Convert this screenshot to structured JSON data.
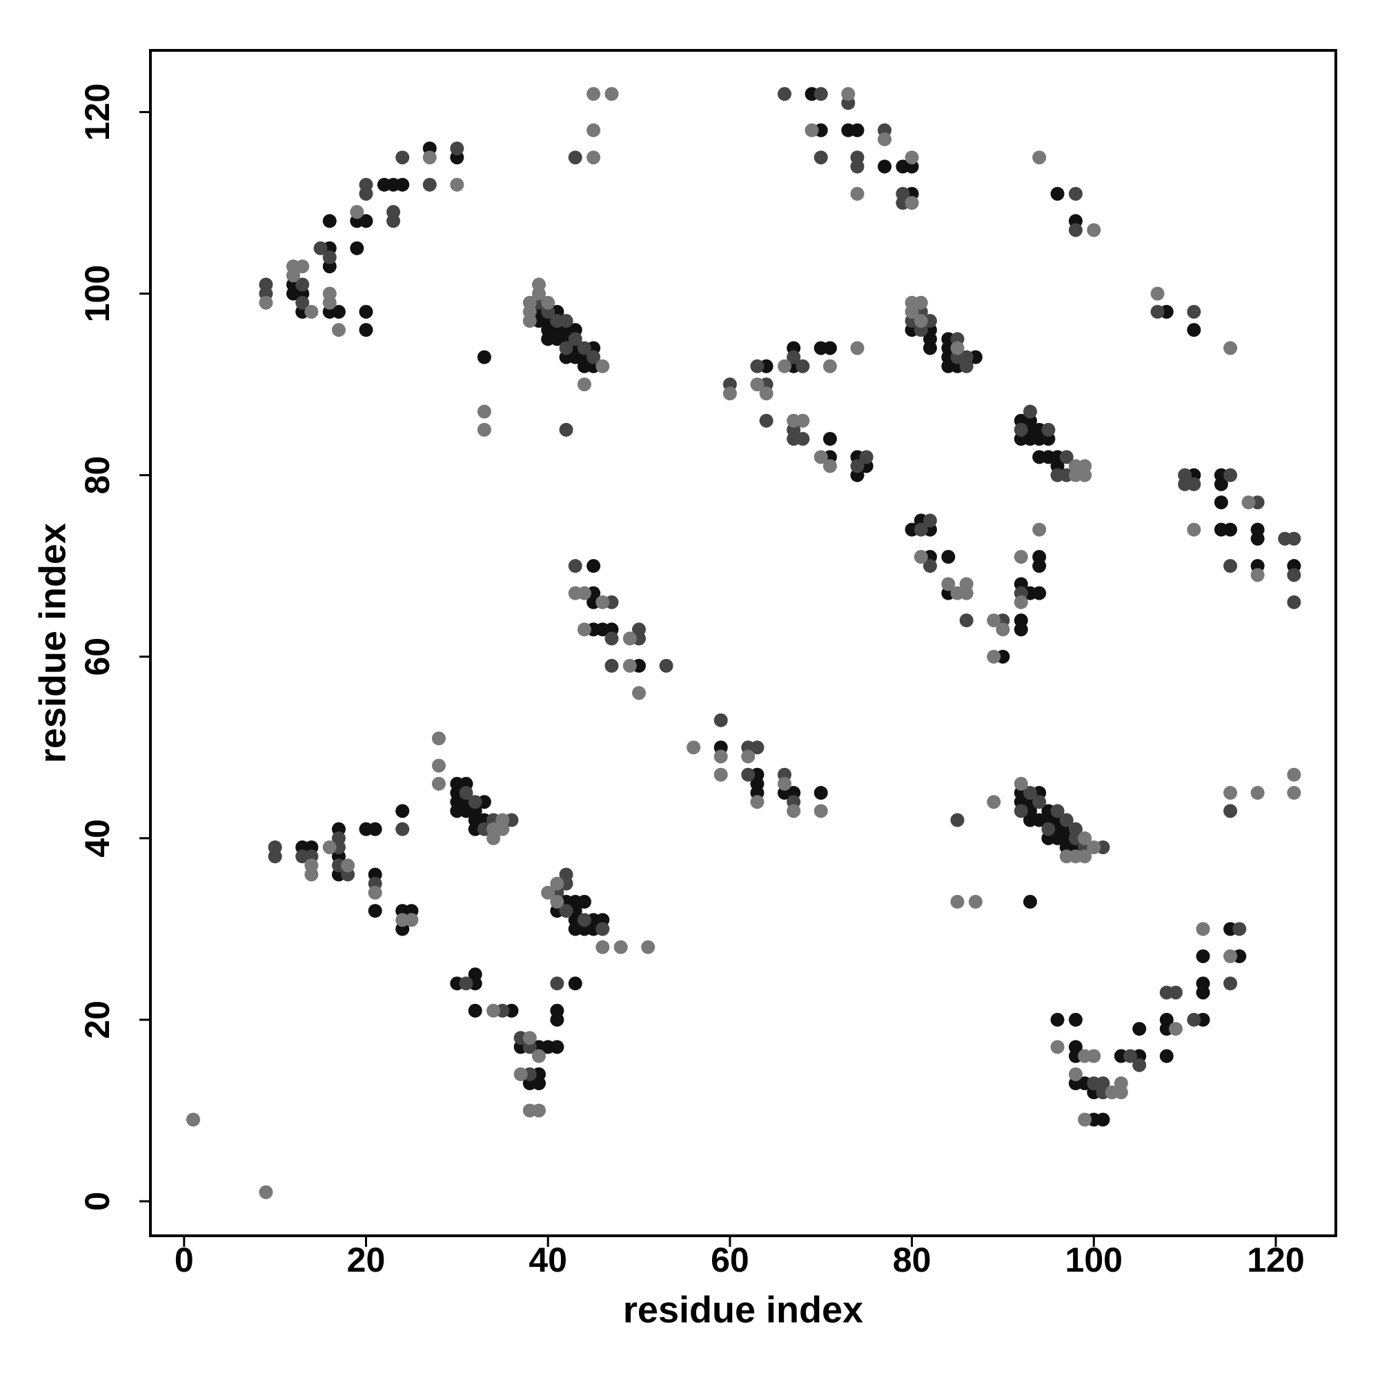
{
  "chart_data": {
    "type": "scatter",
    "x_label": "residue index",
    "y_label": "residue index",
    "xlim": [
      -3.7,
      126.6
    ],
    "ylim": [
      -3.8,
      126.8
    ],
    "xticks": [
      0,
      20,
      40,
      60,
      80,
      100,
      120
    ],
    "yticks": [
      0,
      20,
      40,
      60,
      80,
      100,
      120
    ],
    "series": [
      {
        "color": "#111111",
        "x": [
          13,
          14,
          17,
          17,
          17,
          20,
          21,
          21,
          21,
          24,
          24,
          25,
          24,
          30,
          31,
          30,
          30,
          31,
          30,
          31,
          32,
          33,
          32,
          33,
          32,
          30,
          32,
          32,
          32,
          36,
          37,
          39,
          40,
          41,
          39,
          38,
          39,
          41,
          41,
          43,
          42,
          43,
          44,
          41,
          43,
          43,
          45,
          46,
          43,
          44,
          45,
          45,
          45,
          45,
          45,
          46,
          47,
          50,
          39,
          39,
          40,
          40,
          40,
          41,
          41,
          41,
          42,
          42,
          42,
          43,
          43,
          43,
          44,
          44,
          45,
          45,
          33,
          12,
          12,
          13,
          13,
          16,
          16,
          16,
          17,
          16,
          19,
          19,
          20,
          20,
          20,
          22,
          23,
          24,
          27,
          30,
          69,
          70,
          73,
          74,
          77,
          79,
          80,
          80,
          64,
          67,
          67,
          70,
          71,
          71,
          71,
          74,
          75,
          74,
          80,
          82,
          82,
          82,
          84,
          84,
          84,
          87,
          84,
          85,
          92,
          93,
          93,
          94,
          92,
          93,
          94,
          95,
          94,
          95,
          96,
          96,
          80,
          81,
          82,
          82,
          84,
          94,
          94,
          84,
          92,
          93,
          94,
          92,
          92,
          90,
          108,
          111,
          111,
          114,
          114,
          114,
          114,
          115,
          118,
          118,
          118,
          122,
          96,
          98,
          59,
          63,
          63,
          63,
          66,
          67,
          70,
          92,
          94,
          92,
          93,
          95,
          93,
          93,
          94,
          95,
          96,
          96,
          97,
          95,
          96,
          97,
          97,
          98,
          93,
          96,
          98,
          98,
          98,
          98,
          99,
          100,
          100,
          101,
          103,
          105,
          105,
          108,
          108,
          108,
          112,
          112,
          112,
          112,
          115,
          116
        ],
        "y": [
          39,
          39,
          41,
          38,
          36,
          41,
          41,
          36,
          32,
          43,
          32,
          32,
          30,
          46,
          46,
          45,
          44,
          44,
          43,
          43,
          43,
          44,
          42,
          42,
          41,
          24,
          25,
          24,
          21,
          21,
          17,
          17,
          17,
          17,
          14,
          13,
          13,
          21,
          20,
          24,
          33,
          33,
          33,
          32,
          32,
          31,
          31,
          31,
          30,
          30,
          30,
          70,
          67,
          66,
          63,
          63,
          63,
          59,
          98,
          97,
          97,
          96,
          95,
          98,
          96,
          95,
          96,
          95,
          93,
          96,
          94,
          93,
          93,
          92,
          94,
          92,
          93,
          101,
          100,
          100,
          98,
          105,
          103,
          98,
          98,
          108,
          105,
          108,
          108,
          98,
          96,
          112,
          112,
          112,
          116,
          115,
          122,
          118,
          118,
          118,
          114,
          114,
          114,
          111,
          92,
          94,
          92,
          94,
          94,
          82,
          84,
          82,
          81,
          80,
          96,
          96,
          95,
          94,
          95,
          94,
          93,
          93,
          92,
          92,
          86,
          86,
          85,
          85,
          84,
          84,
          84,
          84,
          82,
          82,
          82,
          81,
          74,
          75,
          74,
          71,
          71,
          71,
          70,
          67,
          68,
          67,
          67,
          64,
          63,
          60,
          98,
          96,
          80,
          80,
          79,
          77,
          74,
          74,
          74,
          73,
          70,
          70,
          111,
          108,
          50,
          47,
          46,
          45,
          45,
          45,
          45,
          45,
          45,
          44,
          44,
          43,
          43,
          42,
          42,
          42,
          42,
          41,
          41,
          40,
          40,
          40,
          39,
          39,
          33,
          20,
          20,
          17,
          16,
          13,
          13,
          12,
          9,
          9,
          16,
          16,
          19,
          16,
          20,
          19,
          20,
          24,
          23,
          27,
          30,
          27
        ]
      },
      {
        "color": "#454545",
        "x": [
          10,
          10,
          13,
          14,
          17,
          17,
          17,
          18,
          21,
          24,
          31,
          32,
          34,
          36,
          33,
          31,
          35,
          37,
          38,
          38,
          41,
          41,
          42,
          42,
          42,
          44,
          46,
          43,
          47,
          47,
          50,
          50,
          47,
          53,
          39,
          40,
          41,
          42,
          42,
          43,
          44,
          45,
          42,
          43,
          9,
          9,
          13,
          13,
          15,
          16,
          20,
          20,
          23,
          23,
          24,
          27,
          30,
          66,
          70,
          73,
          70,
          74,
          74,
          77,
          79,
          79,
          60,
          63,
          64,
          64,
          67,
          68,
          67,
          67,
          68,
          75,
          74,
          81,
          80,
          82,
          81,
          85,
          85,
          86,
          86,
          93,
          92,
          95,
          97,
          96,
          97,
          82,
          81,
          82,
          92,
          86,
          90,
          107,
          111,
          110,
          115,
          110,
          111,
          118,
          115,
          121,
          122,
          122,
          122,
          98,
          98,
          59,
          62,
          63,
          62,
          66,
          67,
          85,
          93,
          94,
          96,
          92,
          97,
          95,
          98,
          98,
          99,
          101,
          115,
          100,
          101,
          101,
          104,
          105,
          108,
          109,
          111,
          116,
          115
        ],
        "y": [
          39,
          38,
          38,
          38,
          40,
          39,
          37,
          36,
          35,
          41,
          45,
          44,
          42,
          42,
          41,
          24,
          21,
          18,
          17,
          14,
          24,
          34,
          35,
          36,
          32,
          31,
          30,
          70,
          66,
          62,
          63,
          62,
          59,
          59,
          99,
          98,
          97,
          97,
          94,
          95,
          94,
          93,
          85,
          115,
          101,
          100,
          101,
          99,
          105,
          104,
          112,
          111,
          109,
          108,
          115,
          112,
          116,
          122,
          122,
          121,
          115,
          115,
          114,
          118,
          111,
          110,
          90,
          92,
          90,
          86,
          93,
          92,
          85,
          84,
          84,
          82,
          81,
          98,
          97,
          97,
          96,
          95,
          93,
          93,
          92,
          87,
          85,
          85,
          82,
          80,
          80,
          75,
          74,
          70,
          67,
          64,
          64,
          98,
          98,
          80,
          80,
          79,
          79,
          77,
          70,
          73,
          73,
          69,
          66,
          111,
          107,
          53,
          50,
          50,
          47,
          47,
          44,
          42,
          45,
          44,
          43,
          43,
          42,
          41,
          41,
          40,
          39,
          39,
          43,
          13,
          13,
          12,
          16,
          15,
          23,
          23,
          20,
          30,
          24
        ]
      },
      {
        "color": "#787878",
        "x": [
          1,
          9,
          14,
          14,
          16,
          18,
          21,
          24,
          25,
          28,
          28,
          28,
          35,
          34,
          35,
          34,
          34,
          38,
          39,
          37,
          38,
          39,
          40,
          41,
          41,
          46,
          48,
          51,
          43,
          44,
          46,
          44,
          49,
          49,
          50,
          38,
          38,
          38,
          39,
          39,
          40,
          46,
          44,
          33,
          33,
          45,
          47,
          45,
          45,
          9,
          12,
          13,
          12,
          14,
          16,
          16,
          17,
          19,
          27,
          30,
          73,
          69,
          77,
          74,
          80,
          80,
          60,
          63,
          64,
          66,
          71,
          74,
          67,
          68,
          70,
          71,
          80,
          81,
          80,
          81,
          85,
          98,
          98,
          99,
          99,
          81,
          94,
          92,
          84,
          86,
          85,
          86,
          92,
          89,
          90,
          89,
          107,
          115,
          111,
          117,
          118,
          94,
          100,
          56,
          59,
          59,
          62,
          63,
          66,
          67,
          70,
          89,
          92,
          99,
          100,
          97,
          98,
          99,
          85,
          87,
          115,
          118,
          122,
          122,
          96,
          99,
          100,
          98,
          102,
          103,
          103,
          99,
          109,
          112,
          115
        ],
        "y": [
          9,
          1,
          37,
          36,
          39,
          37,
          34,
          31,
          31,
          51,
          48,
          46,
          42,
          41,
          41,
          40,
          21,
          18,
          16,
          14,
          10,
          10,
          34,
          35,
          33,
          28,
          28,
          28,
          67,
          67,
          66,
          63,
          62,
          59,
          56,
          99,
          98,
          97,
          101,
          100,
          99,
          92,
          90,
          87,
          85,
          122,
          122,
          118,
          115,
          99,
          103,
          103,
          102,
          98,
          100,
          99,
          96,
          109,
          115,
          112,
          122,
          118,
          117,
          111,
          110,
          115,
          89,
          90,
          89,
          92,
          92,
          94,
          86,
          86,
          82,
          81,
          99,
          99,
          98,
          97,
          94,
          81,
          80,
          81,
          80,
          71,
          74,
          71,
          68,
          68,
          67,
          67,
          66,
          64,
          63,
          60,
          100,
          94,
          74,
          77,
          69,
          115,
          107,
          50,
          49,
          47,
          49,
          44,
          46,
          43,
          43,
          44,
          46,
          40,
          39,
          38,
          38,
          38,
          33,
          33,
          45,
          45,
          47,
          45,
          17,
          16,
          16,
          14,
          12,
          12,
          13,
          9,
          19,
          30,
          27
        ]
      }
    ]
  }
}
